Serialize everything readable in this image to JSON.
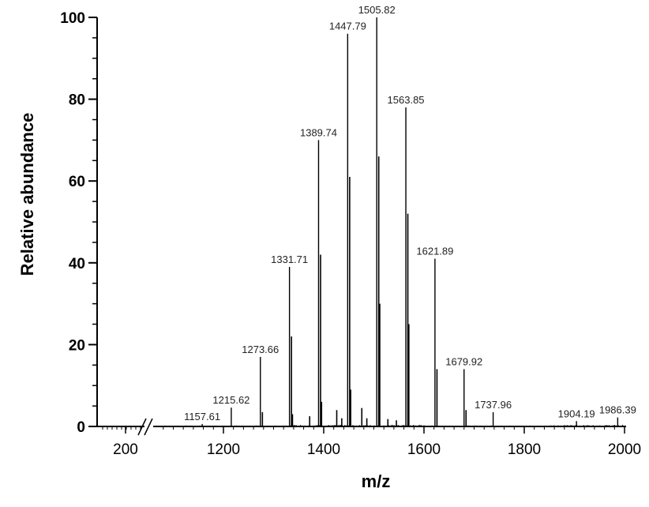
{
  "chart_data": {
    "type": "bar",
    "title": "",
    "xlabel": "m/z",
    "ylabel": "Relative abundance",
    "ylim": [
      0,
      100
    ],
    "yticks": [
      0,
      20,
      40,
      60,
      80,
      100
    ],
    "xticks_left": [
      200
    ],
    "xticks_right": [
      1200,
      1400,
      1600,
      1800,
      2000
    ],
    "axis_break_between": [
      250,
      1050
    ],
    "grid": false,
    "peaks": [
      {
        "mz": 1157.61,
        "value": 0.6,
        "label": "1157.61"
      },
      {
        "mz": 1215.62,
        "value": 4.6,
        "label": "1215.62"
      },
      {
        "mz": 1273.66,
        "value": 17,
        "label": "1273.66"
      },
      {
        "mz": 1331.71,
        "value": 39,
        "label": "1331.71"
      },
      {
        "mz": 1389.74,
        "value": 70,
        "label": "1389.74"
      },
      {
        "mz": 1447.79,
        "value": 96,
        "label": "1447.79"
      },
      {
        "mz": 1505.82,
        "value": 100,
        "label": "1505.82"
      },
      {
        "mz": 1563.85,
        "value": 78,
        "label": "1563.85"
      },
      {
        "mz": 1621.89,
        "value": 41,
        "label": "1621.89"
      },
      {
        "mz": 1679.92,
        "value": 14,
        "label": "1679.92"
      },
      {
        "mz": 1737.96,
        "value": 3.5,
        "label": "1737.96"
      },
      {
        "mz": 1904.19,
        "value": 1.3,
        "label": "1904.19"
      },
      {
        "mz": 1986.39,
        "value": 2.2,
        "label": "1986.39"
      }
    ],
    "isotope_peaks": [
      {
        "mz": 1277.7,
        "value": 3.5
      },
      {
        "mz": 1335.7,
        "value": 22
      },
      {
        "mz": 1337.7,
        "value": 3
      },
      {
        "mz": 1393.7,
        "value": 42
      },
      {
        "mz": 1395.7,
        "value": 6
      },
      {
        "mz": 1451.8,
        "value": 61
      },
      {
        "mz": 1453.8,
        "value": 9
      },
      {
        "mz": 1509.8,
        "value": 66
      },
      {
        "mz": 1511.8,
        "value": 30
      },
      {
        "mz": 1567.8,
        "value": 52
      },
      {
        "mz": 1569.8,
        "value": 25
      },
      {
        "mz": 1625.9,
        "value": 14
      },
      {
        "mz": 1683.9,
        "value": 4
      },
      {
        "mz": 1426,
        "value": 4
      },
      {
        "mz": 1476,
        "value": 4.5
      },
      {
        "mz": 1436,
        "value": 2
      },
      {
        "mz": 1486,
        "value": 2
      },
      {
        "mz": 1372,
        "value": 2.5
      },
      {
        "mz": 1528,
        "value": 1.8
      },
      {
        "mz": 1545,
        "value": 1.5
      }
    ]
  }
}
